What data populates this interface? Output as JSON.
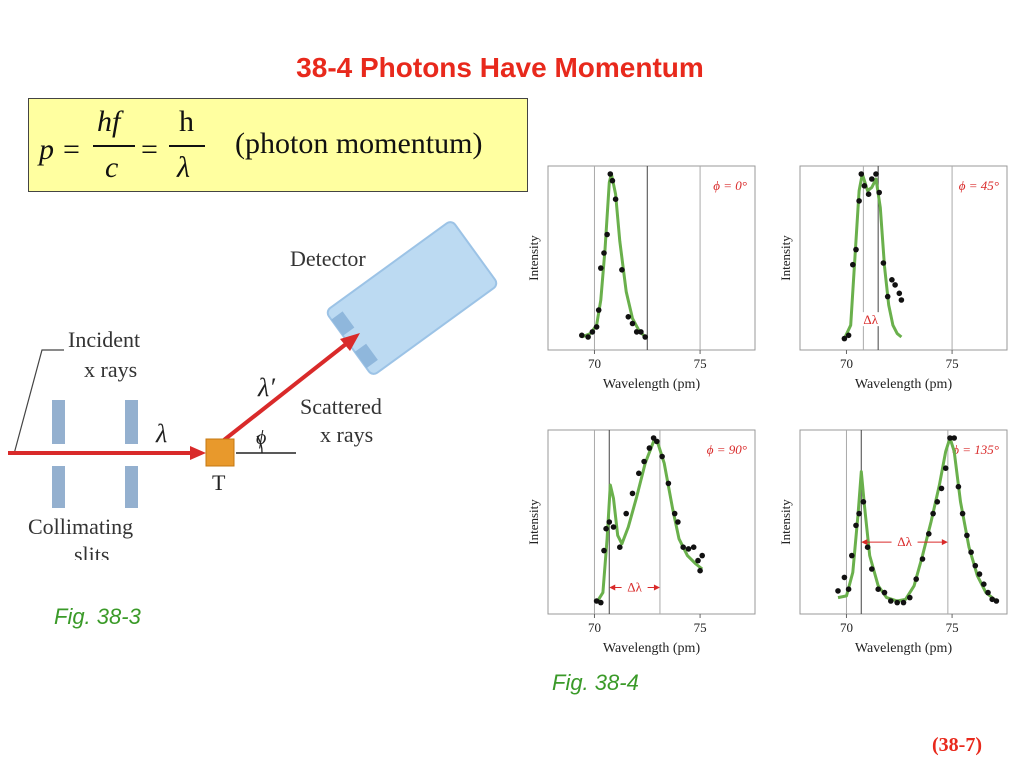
{
  "slide": {
    "title": "38-4   Photons Have Momentum",
    "number": "(38-7)",
    "title_color": "#e8291c",
    "caption_color": "#3a9a28",
    "box_color": "#ffffa0"
  },
  "equation": {
    "lhs": "p",
    "equals": "=",
    "frac1_num": "hf",
    "frac1_den": "c",
    "frac2_num": "h",
    "frac2_den": "λ",
    "note": "(photon momentum)"
  },
  "fig_38_3": {
    "caption": "Fig. 38-3",
    "incident_label_1": "Incident",
    "incident_label_2": "x rays",
    "collimating_1": "Collimating",
    "collimating_2": "slits",
    "lambda": "λ",
    "target": "T",
    "lambda_prime": "λ′",
    "phi": "ϕ",
    "detector": "Detector",
    "scattered_1": "Scattered",
    "scattered_2": "x rays"
  },
  "fig_38_4": {
    "caption": "Fig. 38-4",
    "line_color": "#6ab04c"
  },
  "chart_data": [
    {
      "type": "line",
      "annotation": "ϕ = 0°",
      "xlabel": "Wavelength (pm)",
      "ylabel": "Intensity",
      "xlim": [
        67.8,
        77.6
      ],
      "ylim": [
        0,
        1
      ],
      "xticks": [
        "70",
        "75"
      ],
      "reference_lines": [
        70.0,
        72.5,
        75.0
      ],
      "delta_lambda": null,
      "points": [
        [
          69.4,
          0.04
        ],
        [
          69.7,
          0.03
        ],
        [
          69.9,
          0.06
        ],
        [
          70.1,
          0.09
        ],
        [
          70.2,
          0.19
        ],
        [
          70.3,
          0.44
        ],
        [
          70.45,
          0.53
        ],
        [
          70.6,
          0.64
        ],
        [
          70.75,
          1.0
        ],
        [
          70.85,
          0.96
        ],
        [
          71.0,
          0.85
        ],
        [
          71.3,
          0.43
        ],
        [
          71.6,
          0.15
        ],
        [
          71.8,
          0.11
        ],
        [
          72.0,
          0.06
        ],
        [
          72.2,
          0.06
        ],
        [
          72.4,
          0.03
        ]
      ],
      "curve": [
        [
          69.4,
          0.03
        ],
        [
          69.8,
          0.05
        ],
        [
          70.1,
          0.1
        ],
        [
          70.3,
          0.25
        ],
        [
          70.5,
          0.55
        ],
        [
          70.7,
          0.95
        ],
        [
          70.8,
          1.0
        ],
        [
          71.0,
          0.88
        ],
        [
          71.2,
          0.6
        ],
        [
          71.5,
          0.3
        ],
        [
          71.8,
          0.14
        ],
        [
          72.1,
          0.07
        ],
        [
          72.4,
          0.03
        ]
      ]
    },
    {
      "type": "line",
      "annotation": "ϕ = 45°",
      "xlabel": "Wavelength (pm)",
      "ylabel": "Intensity",
      "xlim": [
        67.8,
        77.6
      ],
      "ylim": [
        0,
        1
      ],
      "xticks": [
        "70",
        "75"
      ],
      "reference_lines": [
        70.8,
        71.5,
        75.0
      ],
      "delta_lambda": {
        "label": "Δλ",
        "from": 70.8,
        "to": 71.5,
        "y": 0.13
      },
      "points": [
        [
          69.9,
          0.02
        ],
        [
          70.1,
          0.04
        ],
        [
          70.3,
          0.46
        ],
        [
          70.45,
          0.55
        ],
        [
          70.6,
          0.84
        ],
        [
          70.7,
          1.0
        ],
        [
          70.85,
          0.93
        ],
        [
          71.05,
          0.88
        ],
        [
          71.2,
          0.97
        ],
        [
          71.4,
          1.0
        ],
        [
          71.55,
          0.89
        ],
        [
          71.75,
          0.47
        ],
        [
          71.95,
          0.27
        ],
        [
          72.15,
          0.37
        ],
        [
          72.3,
          0.34
        ],
        [
          72.5,
          0.29
        ],
        [
          72.6,
          0.25
        ]
      ],
      "curve": [
        [
          69.9,
          0.02
        ],
        [
          70.2,
          0.1
        ],
        [
          70.4,
          0.5
        ],
        [
          70.6,
          0.9
        ],
        [
          70.75,
          1.0
        ],
        [
          71.0,
          0.9
        ],
        [
          71.2,
          0.92
        ],
        [
          71.4,
          0.97
        ],
        [
          71.6,
          0.8
        ],
        [
          71.8,
          0.45
        ],
        [
          72.0,
          0.22
        ],
        [
          72.2,
          0.1
        ],
        [
          72.4,
          0.05
        ],
        [
          72.6,
          0.03
        ]
      ]
    },
    {
      "type": "line",
      "annotation": "ϕ = 90°",
      "xlabel": "Wavelength (pm)",
      "ylabel": "Intensity",
      "xlim": [
        67.8,
        77.6
      ],
      "ylim": [
        0,
        1
      ],
      "xticks": [
        "70",
        "75"
      ],
      "reference_lines": [
        70.0,
        70.7,
        73.1
      ],
      "delta_lambda": {
        "label": "Δλ",
        "from": 70.7,
        "to": 73.1,
        "y": 0.11
      },
      "points": [
        [
          70.1,
          0.03
        ],
        [
          70.3,
          0.02
        ],
        [
          70.45,
          0.33
        ],
        [
          70.55,
          0.46
        ],
        [
          70.7,
          0.5
        ],
        [
          70.9,
          0.47
        ],
        [
          71.2,
          0.35
        ],
        [
          71.5,
          0.55
        ],
        [
          71.8,
          0.67
        ],
        [
          72.1,
          0.79
        ],
        [
          72.35,
          0.86
        ],
        [
          72.6,
          0.94
        ],
        [
          72.8,
          1.0
        ],
        [
          72.95,
          0.98
        ],
        [
          73.2,
          0.89
        ],
        [
          73.5,
          0.73
        ],
        [
          73.8,
          0.55
        ],
        [
          73.95,
          0.5
        ],
        [
          74.2,
          0.35
        ],
        [
          74.45,
          0.34
        ],
        [
          74.7,
          0.35
        ],
        [
          74.9,
          0.27
        ],
        [
          75.1,
          0.3
        ],
        [
          75.0,
          0.21
        ]
      ],
      "curve": [
        [
          70.1,
          0.02
        ],
        [
          70.4,
          0.08
        ],
        [
          70.6,
          0.4
        ],
        [
          70.75,
          0.72
        ],
        [
          70.9,
          0.64
        ],
        [
          71.1,
          0.42
        ],
        [
          71.3,
          0.37
        ],
        [
          71.6,
          0.47
        ],
        [
          72.0,
          0.65
        ],
        [
          72.4,
          0.85
        ],
        [
          72.8,
          0.98
        ],
        [
          73.0,
          0.97
        ],
        [
          73.3,
          0.85
        ],
        [
          73.7,
          0.58
        ],
        [
          74.0,
          0.4
        ],
        [
          74.4,
          0.3
        ],
        [
          74.8,
          0.25
        ],
        [
          75.1,
          0.22
        ]
      ]
    },
    {
      "type": "line",
      "annotation": "ϕ = 135°",
      "xlabel": "Wavelength (pm)",
      "ylabel": "Intensity",
      "xlim": [
        67.8,
        77.6
      ],
      "ylim": [
        0,
        1
      ],
      "xticks": [
        "70",
        "75"
      ],
      "reference_lines": [
        70.0,
        70.7,
        74.8
      ],
      "delta_lambda": {
        "label": "Δλ",
        "from": 70.7,
        "to": 74.8,
        "y": 0.38
      },
      "points": [
        [
          69.6,
          0.09
        ],
        [
          69.9,
          0.17
        ],
        [
          70.1,
          0.1
        ],
        [
          70.25,
          0.3
        ],
        [
          70.45,
          0.48
        ],
        [
          70.6,
          0.55
        ],
        [
          70.8,
          0.62
        ],
        [
          71.0,
          0.35
        ],
        [
          71.2,
          0.22
        ],
        [
          71.5,
          0.1
        ],
        [
          71.8,
          0.08
        ],
        [
          72.1,
          0.03
        ],
        [
          72.4,
          0.02
        ],
        [
          72.7,
          0.02
        ],
        [
          73.0,
          0.05
        ],
        [
          73.3,
          0.16
        ],
        [
          73.6,
          0.28
        ],
        [
          73.9,
          0.43
        ],
        [
          74.1,
          0.55
        ],
        [
          74.3,
          0.62
        ],
        [
          74.5,
          0.7
        ],
        [
          74.7,
          0.82
        ],
        [
          74.9,
          1.0
        ],
        [
          75.1,
          1.0
        ],
        [
          75.3,
          0.71
        ],
        [
          75.5,
          0.55
        ],
        [
          75.7,
          0.42
        ],
        [
          75.9,
          0.32
        ],
        [
          76.1,
          0.24
        ],
        [
          76.3,
          0.19
        ],
        [
          76.5,
          0.13
        ],
        [
          76.7,
          0.08
        ],
        [
          76.9,
          0.04
        ],
        [
          77.1,
          0.03
        ]
      ],
      "curve": [
        [
          69.6,
          0.05
        ],
        [
          70.0,
          0.06
        ],
        [
          70.3,
          0.2
        ],
        [
          70.55,
          0.55
        ],
        [
          70.7,
          0.8
        ],
        [
          70.85,
          0.6
        ],
        [
          71.1,
          0.3
        ],
        [
          71.5,
          0.12
        ],
        [
          71.9,
          0.05
        ],
        [
          72.4,
          0.03
        ],
        [
          72.8,
          0.04
        ],
        [
          73.2,
          0.12
        ],
        [
          73.6,
          0.3
        ],
        [
          74.0,
          0.5
        ],
        [
          74.4,
          0.72
        ],
        [
          74.7,
          0.92
        ],
        [
          74.9,
          1.0
        ],
        [
          75.1,
          0.92
        ],
        [
          75.4,
          0.62
        ],
        [
          75.8,
          0.35
        ],
        [
          76.2,
          0.18
        ],
        [
          76.6,
          0.08
        ],
        [
          77.1,
          0.03
        ]
      ]
    }
  ]
}
